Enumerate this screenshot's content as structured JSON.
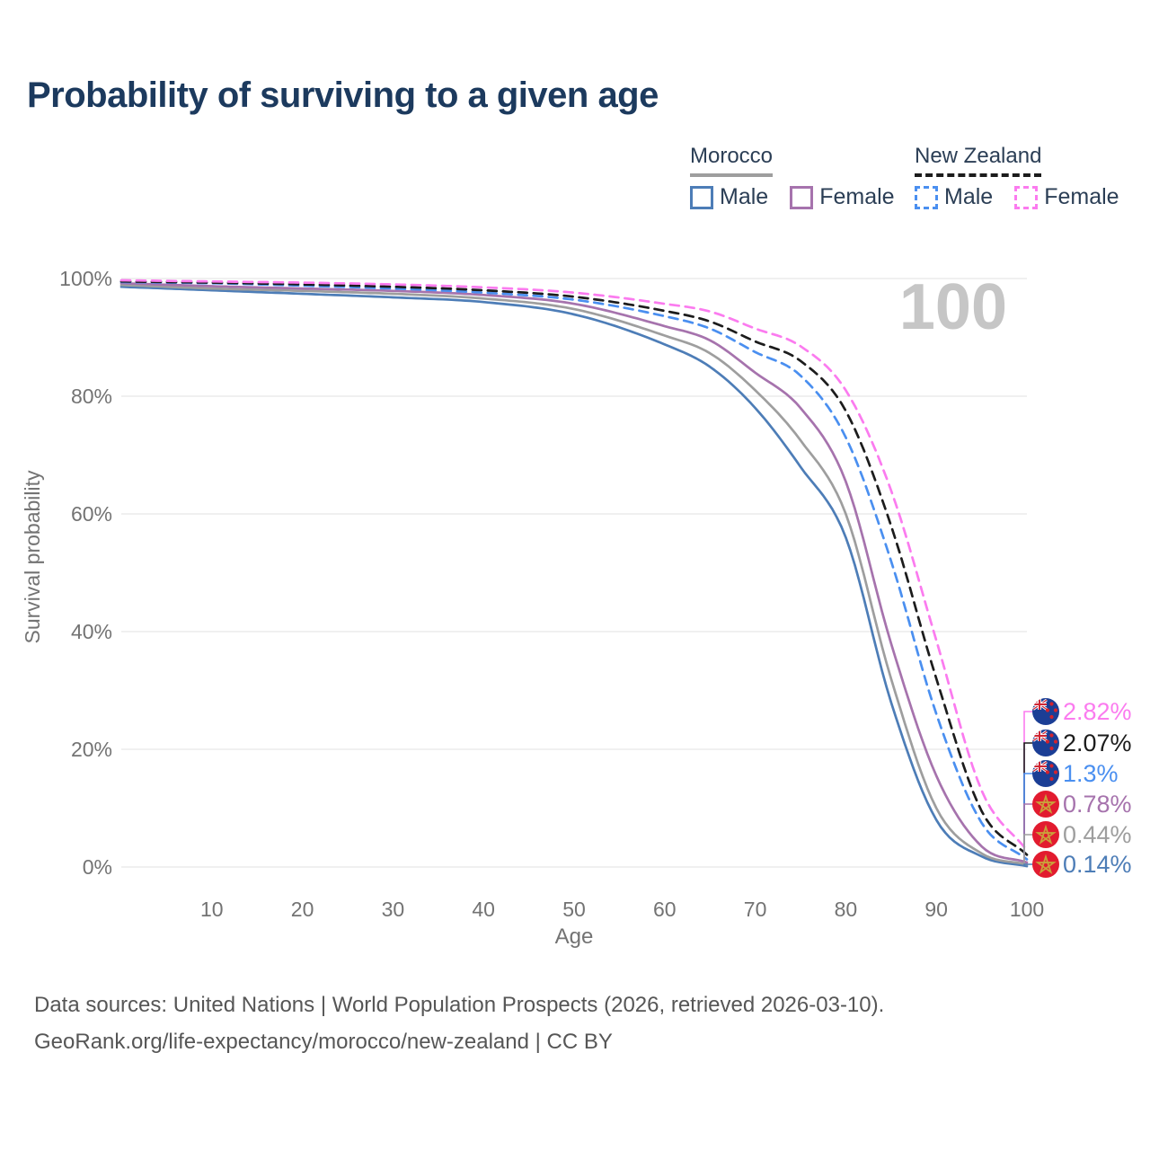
{
  "title": "Probability of surviving to a given age",
  "watermark": "100",
  "legend": {
    "morocco": {
      "name": "Morocco",
      "male_label": "Male",
      "female_label": "Female",
      "male_color": "#4d7db7",
      "female_color": "#a673ad",
      "line_color": "#9e9e9e",
      "line_style": "solid"
    },
    "new_zealand": {
      "name": "New Zealand",
      "male_label": "Male",
      "female_label": "Female",
      "male_color": "#4a8ff0",
      "female_color": "#fb7bef",
      "line_color": "#1c1c1c",
      "line_style": "dashed"
    }
  },
  "chart_data": {
    "type": "line",
    "title": "Probability of surviving to a given age",
    "xlabel": "Age",
    "ylabel": "Survival probability",
    "xlim": [
      0,
      100
    ],
    "ylim": [
      0,
      100
    ],
    "grid": "horizontal",
    "x_ticks": [
      10,
      20,
      30,
      40,
      50,
      60,
      70,
      80,
      90,
      100
    ],
    "y_ticks": [
      0,
      20,
      40,
      60,
      80,
      100
    ],
    "y_tick_suffix": "%",
    "legend_position": "top-right",
    "x": [
      0,
      10,
      20,
      30,
      40,
      50,
      60,
      65,
      70,
      75,
      80,
      85,
      90,
      95,
      100
    ],
    "series": [
      {
        "name": "Morocco Male",
        "country": "Morocco",
        "sex": "Male",
        "color": "#4d7db7",
        "dash": "solid",
        "flag": "morocco",
        "end_label": "0.14%",
        "values": [
          98.6,
          98.0,
          97.4,
          96.8,
          96.0,
          93.9,
          88.8,
          85.0,
          78.0,
          68.0,
          56.0,
          28.0,
          8.0,
          1.8,
          0.14
        ]
      },
      {
        "name": "Morocco Both sexes",
        "country": "Morocco",
        "sex": "Both",
        "color": "#9e9e9e",
        "dash": "solid",
        "flag": "morocco",
        "end_label": "0.44%",
        "values": [
          98.9,
          98.3,
          97.9,
          97.4,
          96.6,
          94.8,
          90.3,
          87.3,
          81.0,
          72.5,
          60.0,
          32.0,
          10.0,
          2.3,
          0.44
        ]
      },
      {
        "name": "Morocco Female",
        "country": "Morocco",
        "sex": "Female",
        "color": "#a673ad",
        "dash": "solid",
        "flag": "morocco",
        "end_label": "0.78%",
        "values": [
          99.2,
          98.7,
          98.3,
          97.9,
          97.2,
          95.7,
          91.9,
          89.5,
          84.0,
          78.0,
          65.5,
          38.0,
          15.5,
          3.5,
          0.78
        ]
      },
      {
        "name": "New Zealand Male",
        "country": "New Zealand",
        "sex": "Male",
        "color": "#4a8ff0",
        "dash": "dashed",
        "flag": "new-zealand",
        "end_label": "1.3%",
        "values": [
          99.4,
          99.2,
          98.8,
          98.3,
          97.6,
          96.4,
          93.6,
          91.5,
          87.5,
          83.5,
          73.0,
          52.0,
          26.0,
          7.5,
          1.3
        ]
      },
      {
        "name": "New Zealand Both sexes",
        "country": "New Zealand",
        "sex": "Both",
        "color": "#1c1c1c",
        "dash": "dashed",
        "flag": "new-zealand",
        "end_label": "2.07%",
        "values": [
          99.5,
          99.3,
          99.0,
          98.6,
          98.0,
          96.9,
          94.5,
          92.7,
          89.3,
          86.0,
          77.5,
          58.0,
          32.0,
          9.5,
          2.07
        ]
      },
      {
        "name": "New Zealand Female",
        "country": "New Zealand",
        "sex": "Female",
        "color": "#fb7bef",
        "dash": "dashed",
        "flag": "new-zealand",
        "end_label": "2.82%",
        "values": [
          99.7,
          99.5,
          99.3,
          99.0,
          98.5,
          97.6,
          95.7,
          94.4,
          91.5,
          88.5,
          81.0,
          64.0,
          38.5,
          13.0,
          2.82
        ]
      }
    ]
  },
  "footer": {
    "line1": "Data sources: United Nations | World Population Prospects (2026, retrieved 2026-03-10).",
    "line2": "GeoRank.org/life-expectancy/morocco/new-zealand | CC BY"
  }
}
